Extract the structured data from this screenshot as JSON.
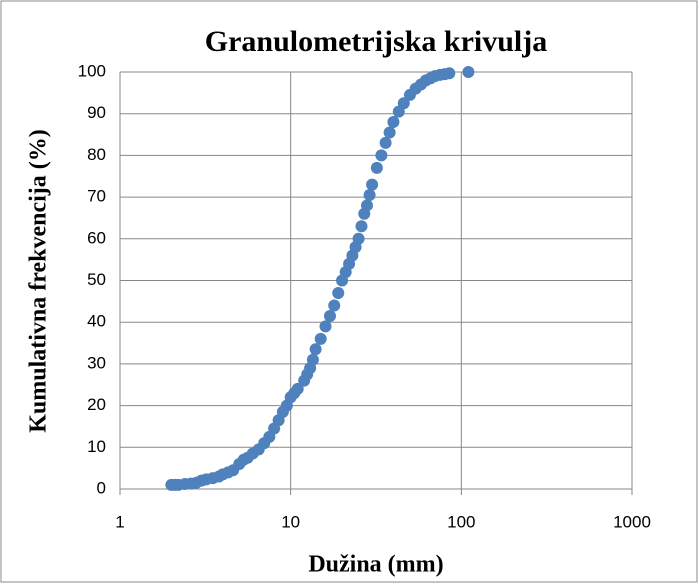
{
  "chart_data": {
    "type": "scatter",
    "title": "Granulometrijska krivulja",
    "x_label": "Dužina (mm)",
    "y_label": "Kumulativna frekvencija (%)",
    "x": [
      2,
      2.1,
      2.2,
      2.4,
      2.6,
      2.8,
      3,
      3.2,
      3.5,
      3.8,
      4,
      4.3,
      4.6,
      5,
      5.3,
      5.6,
      6,
      6.5,
      7,
      7.5,
      8,
      8.5,
      9,
      9.5,
      10,
      10.5,
      11,
      12,
      12.5,
      13,
      13.5,
      14,
      15,
      16,
      17,
      18,
      19,
      20,
      21,
      22,
      23,
      24,
      25,
      26,
      27,
      28,
      29,
      30,
      32,
      34,
      36,
      38,
      40,
      43,
      46,
      50,
      54,
      58,
      62,
      66,
      70,
      75,
      80,
      85,
      110
    ],
    "series": [
      {
        "color": "#4f81bd",
        "values": [
          1,
          1,
          1,
          1.2,
          1.3,
          1.5,
          2,
          2.3,
          2.6,
          3,
          3.5,
          4,
          4.5,
          6,
          7,
          7.5,
          8.5,
          9.5,
          11,
          12.5,
          14.5,
          16.5,
          18.5,
          20,
          22,
          23,
          24,
          26,
          27.5,
          29,
          31,
          33.5,
          36,
          39,
          41.5,
          44,
          47,
          50,
          52,
          54,
          56,
          58,
          60,
          63,
          66,
          68,
          70.5,
          73,
          77,
          80,
          83,
          85.5,
          88,
          90.5,
          92.5,
          94.5,
          96,
          97,
          98,
          98.5,
          99,
          99.3,
          99.5,
          99.7,
          100
        ]
      }
    ],
    "xlim": [
      1,
      1000
    ],
    "xticks": [
      1,
      10,
      100,
      1000
    ],
    "x_log": true,
    "ylim": [
      0,
      100
    ],
    "yticks": [
      0,
      10,
      20,
      30,
      40,
      50,
      60,
      70,
      80,
      90,
      100
    ],
    "grid": true
  }
}
